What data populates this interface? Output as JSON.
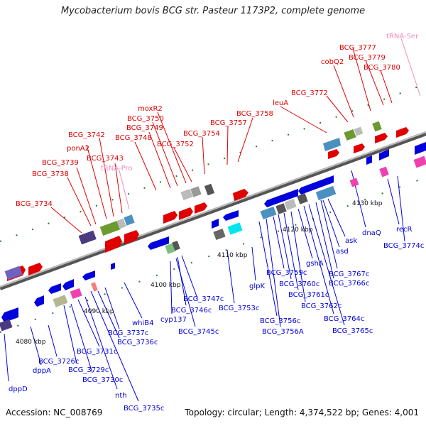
{
  "title": "Mycobacterium bovis BCG str. Pasteur 1173P2, complete genome",
  "accession": "Accession: NC_008769",
  "summary": "Topology: circular; Length: 4,374,522 bp; Genes: 4,001",
  "colors": {
    "forward": "#e00000",
    "reverse": "#0000dd",
    "trna": "#f08cbf",
    "backbone": "#8c8c8c"
  },
  "ticks": [
    "4080 kbp",
    "4090 kbp",
    "4100 kbp",
    "4110 kbp",
    "4120 kbp",
    "4130 kbp"
  ],
  "forward_labels": [
    "BCG_3734",
    "BCG_3738",
    "BCG_3739",
    "ponA2",
    "BCG_3742",
    "BCG_3743",
    "BCG_3748",
    "BCG_3749",
    "BCG_3750",
    "moxR2",
    "BCG_3752",
    "BCG_3754",
    "BCG_3757",
    "BCG_3758",
    "leuA",
    "BCG_3772",
    "cobQ2",
    "BCG_3777",
    "BCG_3779",
    "BCG_3780"
  ],
  "trna_labels": [
    "tRNA-Pro",
    "tRNA-Ser"
  ],
  "reverse_labels": [
    "dppD",
    "dppA",
    "BCG_3726c",
    "BCG_3729c",
    "BCG_3730c",
    "BCG_3731c",
    "nth",
    "BCG_3735c",
    "BCG_3736c",
    "BCG_3737c",
    "whiB4",
    "cyp137",
    "BCG_3745c",
    "BCG_3746c",
    "BCG_3747c",
    "BCG_3753c",
    "glpK",
    "BCG_3756c",
    "BCG_3756A",
    "BCG_3759c",
    "BCG_3760c",
    "BCG_3761c",
    "BCG_3762c",
    "gshA",
    "BCG_3764c",
    "BCG_3765c",
    "BCG_3766c",
    "BCG_3767c",
    "asd",
    "ask",
    "dnaQ",
    "recR",
    "BCG_3774c"
  ]
}
